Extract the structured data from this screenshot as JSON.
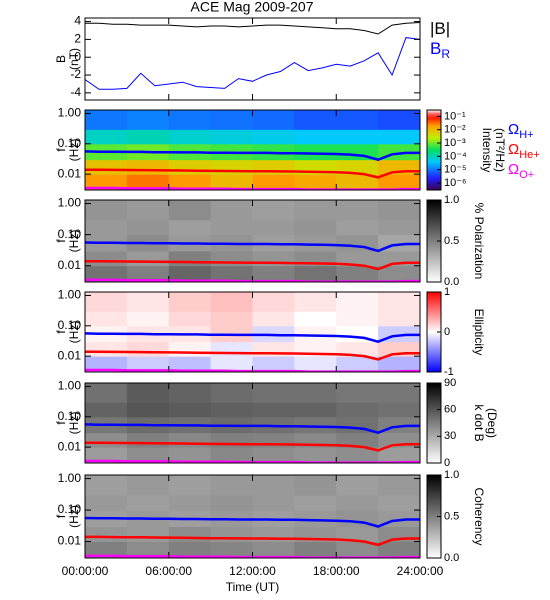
{
  "chart_data": [
    {
      "type": "line",
      "title": "ACE Mag 2009-207",
      "ylabel": [
        "B",
        "(nT)"
      ],
      "xlim": [
        0,
        24
      ],
      "ylim": [
        -4.8,
        4.4
      ],
      "yticks": [
        -4,
        -2,
        0,
        2,
        4
      ],
      "x": [
        0,
        1,
        2,
        3,
        4,
        5,
        6,
        7,
        8,
        9,
        10,
        11,
        12,
        13,
        14,
        15,
        16,
        17,
        18,
        19,
        20,
        21,
        22,
        23,
        24
      ],
      "series": [
        {
          "name": "|B|",
          "color": "#000000",
          "values": [
            3.8,
            3.8,
            3.7,
            3.7,
            3.6,
            3.6,
            3.6,
            3.5,
            3.4,
            3.5,
            3.5,
            3.4,
            3.5,
            3.6,
            3.6,
            3.5,
            3.4,
            3.3,
            3.2,
            3.2,
            3.0,
            2.6,
            3.6,
            3.8,
            3.9
          ]
        },
        {
          "name": "B",
          "subscript": "R",
          "color": "#0000ff",
          "values": [
            -2.5,
            -3.6,
            -3.6,
            -3.5,
            -1.8,
            -3.2,
            -3.0,
            -2.8,
            -3.3,
            -3.4,
            -3.5,
            -2.4,
            -2.7,
            -2.0,
            -1.6,
            -0.6,
            -1.5,
            -1.2,
            -0.8,
            -1.0,
            -0.4,
            0.5,
            -2.0,
            2.2,
            2.0
          ]
        }
      ]
    },
    {
      "type": "heatmap",
      "ylabel": [
        "f",
        "(Hz)"
      ],
      "xlim": [
        0,
        24
      ],
      "ylim": [
        0.003,
        1.3
      ],
      "ylog": true,
      "yticks": [
        {
          "value": 1,
          "label": "1.00"
        },
        {
          "value": 0.1,
          "label": "0.10"
        },
        0.01
      ],
      "xbins": [
        0,
        3,
        6,
        9,
        12,
        15,
        18,
        21,
        24
      ],
      "ybins": [
        0.003,
        0.01,
        0.03,
        0.1,
        0.3,
        1.3
      ],
      "z": [
        [
          0.02,
          0.03,
          0.02,
          0.01,
          0.02,
          0.015,
          0.01,
          0.02
        ],
        [
          0.008,
          0.01,
          0.006,
          0.005,
          0.006,
          0.004,
          0.005,
          0.01
        ],
        [
          0.0008,
          0.001,
          0.0007,
          0.0006,
          0.0005,
          0.0004,
          0.0004,
          0.0006
        ],
        [
          8e-05,
          0.0001,
          7e-05,
          6e-05,
          5e-05,
          4e-05,
          4e-05,
          4e-05
        ],
        [
          1e-05,
          1.2e-05,
          1e-05,
          9e-06,
          8e-06,
          6e-06,
          6e-06,
          5e-06
        ]
      ],
      "colormap": "rainbow",
      "zlog": true,
      "zlim": [
        3e-07,
        0.3
      ],
      "zticks": [
        {
          "value": 0.1,
          "label": "10⁻¹"
        },
        {
          "value": 0.01,
          "label": "10⁻²"
        },
        {
          "value": 0.001,
          "label": "10⁻³"
        },
        {
          "value": 0.0001,
          "label": "10⁻⁴"
        },
        {
          "value": 1e-05,
          "label": "10⁻⁵"
        },
        {
          "value": 1e-06,
          "label": "10⁻⁶"
        }
      ],
      "zlabel": [
        "Intensity",
        "(nT²/Hz)"
      ],
      "x": [
        0,
        1,
        2,
        3,
        4,
        5,
        6,
        7,
        8,
        9,
        10,
        11,
        12,
        13,
        14,
        15,
        16,
        17,
        18,
        19,
        20,
        21,
        22,
        23,
        24
      ],
      "series": [
        {
          "name": "Ω",
          "subscript": "H+",
          "color": "#0000ff",
          "values": [
            0.056,
            0.055,
            0.055,
            0.054,
            0.054,
            0.053,
            0.053,
            0.052,
            0.052,
            0.051,
            0.051,
            0.05,
            0.05,
            0.05,
            0.049,
            0.049,
            0.048,
            0.047,
            0.046,
            0.044,
            0.04,
            0.03,
            0.045,
            0.05,
            0.05
          ]
        },
        {
          "name": "Ω",
          "subscript": "He+",
          "color": "#ff0000",
          "values": [
            0.014,
            0.014,
            0.0138,
            0.0137,
            0.0136,
            0.0134,
            0.0133,
            0.0132,
            0.013,
            0.0128,
            0.0127,
            0.0126,
            0.0125,
            0.0125,
            0.0123,
            0.0122,
            0.012,
            0.0118,
            0.0116,
            0.011,
            0.01,
            0.0078,
            0.0115,
            0.0125,
            0.0125
          ]
        },
        {
          "name": "Ω",
          "subscript": "O+",
          "color": "#ff00ff",
          "values": [
            0.0035,
            0.0035,
            0.0035,
            0.0034,
            0.0034,
            0.0034,
            0.0034,
            0.0033,
            0.0033,
            0.0033,
            0.0033,
            0.0032,
            0.0032,
            0.0032,
            0.0032,
            0.0032,
            0.0031,
            0.0031,
            0.0031,
            0.0031,
            0.0031,
            0.0031,
            0.0031,
            0.0032,
            0.0032
          ]
        }
      ]
    },
    {
      "type": "heatmap",
      "ylabel": [
        "f",
        "(Hz)"
      ],
      "xlim": [
        0,
        24
      ],
      "ylim": [
        0.003,
        1.3
      ],
      "ylog": true,
      "yticks": [
        {
          "value": 1,
          "label": "1.00"
        },
        {
          "value": 0.1,
          "label": "0.10"
        },
        0.01
      ],
      "xbins": [
        0,
        3,
        6,
        9,
        12,
        15,
        18,
        21,
        24
      ],
      "ybins": [
        0.003,
        0.01,
        0.03,
        0.1,
        0.3,
        1.3
      ],
      "z": [
        [
          0.55,
          0.5,
          0.6,
          0.55,
          0.5,
          0.55,
          0.5,
          0.45
        ],
        [
          0.45,
          0.4,
          0.5,
          0.45,
          0.42,
          0.45,
          0.4,
          0.4
        ],
        [
          0.4,
          0.45,
          0.4,
          0.42,
          0.38,
          0.4,
          0.42,
          0.35
        ],
        [
          0.4,
          0.42,
          0.38,
          0.4,
          0.4,
          0.42,
          0.38,
          0.4
        ],
        [
          0.42,
          0.4,
          0.45,
          0.4,
          0.38,
          0.4,
          0.4,
          0.42
        ]
      ],
      "colormap": "gray",
      "zlim": [
        0,
        1
      ],
      "zticks": [
        {
          "value": 1,
          "label": "1.0"
        },
        0.5,
        {
          "value": 0,
          "label": "0.0"
        }
      ],
      "zlabel": [
        "% Polarization"
      ]
    },
    {
      "type": "heatmap",
      "ylabel": [
        "f",
        "(Hz)"
      ],
      "xlim": [
        0,
        24
      ],
      "ylim": [
        0.003,
        1.3
      ],
      "ylog": true,
      "yticks": [
        {
          "value": 1,
          "label": "1.00"
        },
        {
          "value": 0.1,
          "label": "0.10"
        },
        0.01
      ],
      "xbins": [
        0,
        3,
        6,
        9,
        12,
        15,
        18,
        21,
        24
      ],
      "ybins": [
        0.003,
        0.01,
        0.03,
        0.1,
        0.3,
        1.3
      ],
      "z": [
        [
          -0.3,
          -0.2,
          -0.25,
          -0.1,
          -0.2,
          -0.1,
          -0.2,
          -0.3
        ],
        [
          0.1,
          0.15,
          0.05,
          -0.1,
          0.1,
          0.05,
          0.1,
          0.2
        ],
        [
          0.05,
          0.1,
          0.1,
          0.2,
          -0.15,
          0.05,
          0.0,
          -0.2
        ],
        [
          0.1,
          0.05,
          0.15,
          0.2,
          0.1,
          0.0,
          0.05,
          0.1
        ],
        [
          0.15,
          0.1,
          0.2,
          0.25,
          0.15,
          0.1,
          0.05,
          0.1
        ]
      ],
      "colormap": "bwr",
      "zlim": [
        -1,
        1
      ],
      "zticks": [
        1,
        0,
        -1
      ],
      "zlabel": [
        "Ellipticity"
      ]
    },
    {
      "type": "heatmap",
      "ylabel": [
        "f",
        "(Hz)"
      ],
      "xlim": [
        0,
        24
      ],
      "ylim": [
        0.003,
        1.3
      ],
      "ylog": true,
      "yticks": [
        {
          "value": 1,
          "label": "1.00"
        },
        {
          "value": 0.1,
          "label": "0.10"
        },
        0.01
      ],
      "xbins": [
        0,
        3,
        6,
        9,
        12,
        15,
        18,
        21,
        24
      ],
      "ybins": [
        0.003,
        0.01,
        0.03,
        0.1,
        0.3,
        1.3
      ],
      "z": [
        [
          35,
          40,
          38,
          42,
          40,
          38,
          40,
          35
        ],
        [
          40,
          45,
          42,
          45,
          44,
          42,
          45,
          40
        ],
        [
          48,
          52,
          50,
          52,
          50,
          48,
          50,
          45
        ],
        [
          55,
          60,
          58,
          56,
          55,
          55,
          52,
          50
        ],
        [
          50,
          58,
          55,
          52,
          50,
          50,
          48,
          48
        ]
      ],
      "colormap": "gray",
      "zlim": [
        0,
        90
      ],
      "zticks": [
        90,
        60,
        30,
        0
      ],
      "zlabel": [
        "k dot B",
        "(Deg)"
      ]
    },
    {
      "type": "heatmap",
      "ylabel": [
        "f",
        "(Hz)"
      ],
      "xlim": [
        0,
        24
      ],
      "ylim": [
        0.003,
        1.3
      ],
      "ylog": true,
      "yticks": [
        {
          "value": 1,
          "label": "1.00"
        },
        {
          "value": 0.1,
          "label": "0.10"
        },
        0.01
      ],
      "xbins": [
        0,
        3,
        6,
        9,
        12,
        15,
        18,
        21,
        24
      ],
      "ybins": [
        0.003,
        0.01,
        0.03,
        0.1,
        0.3,
        1.3
      ],
      "z": [
        [
          0.5,
          0.45,
          0.5,
          0.48,
          0.45,
          0.5,
          0.45,
          0.5
        ],
        [
          0.42,
          0.4,
          0.45,
          0.42,
          0.4,
          0.42,
          0.4,
          0.45
        ],
        [
          0.38,
          0.4,
          0.38,
          0.4,
          0.38,
          0.4,
          0.42,
          0.4
        ],
        [
          0.4,
          0.38,
          0.4,
          0.42,
          0.4,
          0.38,
          0.4,
          0.38
        ],
        [
          0.38,
          0.4,
          0.38,
          0.4,
          0.4,
          0.42,
          0.38,
          0.4
        ]
      ],
      "colormap": "gray",
      "zlim": [
        0,
        1
      ],
      "zticks": [
        {
          "value": 1,
          "label": "1.0"
        },
        0.5,
        {
          "value": 0,
          "label": "0.0"
        }
      ],
      "zlabel": [
        "Coherency"
      ],
      "xlabel": "Time (UT)",
      "xticks": [
        {
          "value": 0,
          "label": "00:00:00"
        },
        {
          "value": 6,
          "label": "06:00:00"
        },
        {
          "value": 12,
          "label": "12:00:00"
        },
        {
          "value": 18,
          "label": "18:00:00"
        },
        {
          "value": 24,
          "label": "24:00:00"
        }
      ]
    }
  ]
}
